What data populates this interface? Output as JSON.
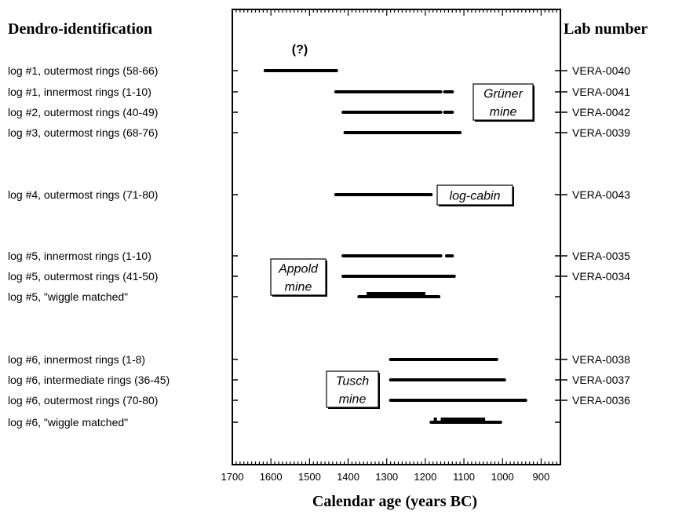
{
  "chart_data": {
    "type": "range",
    "title": "",
    "left_header": "Dendro-identification",
    "right_header": "Lab number",
    "xlabel": "Calendar age (years BC)",
    "xlim": [
      1700,
      850
    ],
    "x_reversed": true,
    "x_ticks": [
      1700,
      1600,
      1500,
      1400,
      1300,
      1200,
      1100,
      1000,
      900
    ],
    "rows": [
      {
        "label": "log #1, outermost rings (58-66)",
        "lab": "VERA-0040",
        "bars": [
          [
            1615,
            1430
          ]
        ]
      },
      {
        "label": "log #1, innermost rings (1-10)",
        "lab": "VERA-0041",
        "bars": [
          [
            1432,
            1160
          ],
          [
            1150,
            1130
          ]
        ]
      },
      {
        "label": "log #2, outermost rings (40-49)",
        "lab": "VERA-0042",
        "bars": [
          [
            1413,
            1160
          ],
          [
            1150,
            1130
          ]
        ]
      },
      {
        "label": "log #3, outermost rings (68-76)",
        "lab": "VERA-0039",
        "bars": [
          [
            1408,
            1110
          ]
        ]
      },
      {
        "label": "log #4, outermost rings (71-80)",
        "lab": "VERA-0043",
        "bars": [
          [
            1432,
            1185
          ]
        ]
      },
      {
        "label": "log #5, innermost rings (1-10)",
        "lab": "VERA-0035",
        "bars": [
          [
            1413,
            1160
          ],
          [
            1145,
            1130
          ]
        ]
      },
      {
        "label": "log #5, outermost rings (41-50)",
        "lab": "VERA-0034",
        "bars": [
          [
            1413,
            1125
          ]
        ]
      },
      {
        "label": "log #5, \"wiggle matched\"",
        "lab": "",
        "bars": [
          [
            1372,
            1165
          ]
        ],
        "thick": [
          [
            1352,
            1200
          ]
        ]
      },
      {
        "label": "log #6, innermost rings (1-8)",
        "lab": "VERA-0038",
        "bars": [
          [
            1290,
            1015
          ]
        ]
      },
      {
        "label": "log #6, intermediate rings (36-45)",
        "lab": "VERA-0037",
        "bars": [
          [
            1290,
            995
          ]
        ]
      },
      {
        "label": "log #6, outermost rings (70-80)",
        "lab": "VERA-0036",
        "bars": [
          [
            1290,
            940
          ]
        ]
      },
      {
        "label": "log #6, \"wiggle matched\"",
        "lab": "",
        "bars": [
          [
            1185,
            1005
          ]
        ],
        "thick": [
          [
            1178,
            1170
          ],
          [
            1160,
            1045
          ]
        ]
      }
    ],
    "annotations": [
      {
        "text": "(?)",
        "boxed": false,
        "row": 0
      },
      {
        "lines": [
          "Grüner",
          "mine"
        ],
        "boxed": true,
        "row": 1.5
      },
      {
        "lines": [
          "log-cabin"
        ],
        "boxed": true,
        "row": 4
      },
      {
        "lines": [
          "Appold",
          "mine"
        ],
        "boxed": true,
        "row": 6
      },
      {
        "lines": [
          "Tusch",
          "mine"
        ],
        "boxed": true,
        "row": 9.5
      }
    ]
  }
}
